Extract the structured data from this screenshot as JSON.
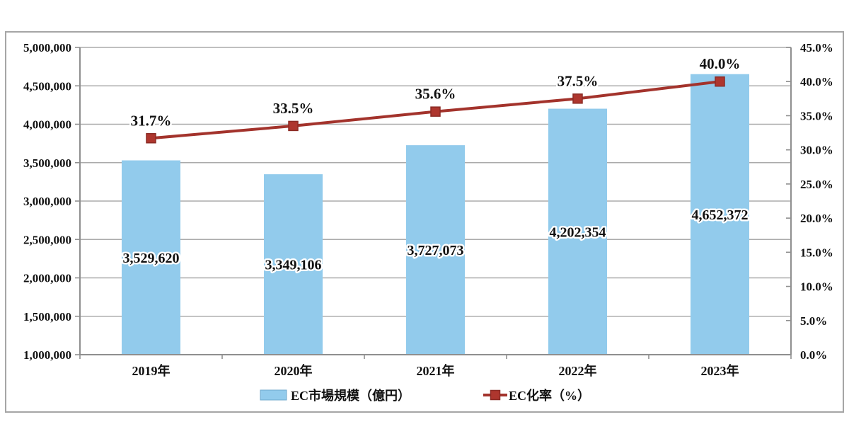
{
  "chart_data": {
    "type": "bar",
    "subtype": "bar-line-combo",
    "title": "",
    "categories": [
      "2019年",
      "2020年",
      "2021年",
      "2022年",
      "2023年"
    ],
    "series": [
      {
        "name": "EC市場規模（億円）",
        "type": "bar",
        "axis": "left",
        "values": [
          3529620,
          3349106,
          3727073,
          4202354,
          4652372
        ],
        "labels": [
          "3,529,620",
          "3,349,106",
          "3,727,073",
          "4,202,354",
          "4,652,372"
        ],
        "color": "#92CBEC",
        "swatch_border": "#6FA8CC"
      },
      {
        "name": "EC化率（%）",
        "type": "line",
        "axis": "right",
        "values": [
          31.7,
          33.5,
          35.6,
          37.5,
          40.0
        ],
        "labels": [
          "31.7%",
          "33.5%",
          "35.6%",
          "37.5%",
          "40.0%"
        ],
        "color": "#A3332C",
        "marker_fill": "#AE362E",
        "marker_border": "#8B2B25"
      }
    ],
    "left_axis": {
      "min": 1000000,
      "max": 5000000,
      "step": 500000,
      "tick_labels": [
        "5,000,000",
        "4,500,000",
        "4,000,000",
        "3,500,000",
        "3,000,000",
        "2,500,000",
        "2,000,000",
        "1,500,000",
        "1,000,000"
      ]
    },
    "right_axis": {
      "min": 0,
      "max": 45,
      "step": 5,
      "tick_labels": [
        "45.0%",
        "40.0%",
        "35.0%",
        "30.0%",
        "25.0%",
        "20.0%",
        "15.0%",
        "10.0%",
        "5.0%",
        "0.0%"
      ]
    },
    "grid": true,
    "legend_position": "bottom"
  },
  "colors": {
    "gridline": "#ABABAB",
    "axis_line": "#8F8F8F",
    "outer_border": "#A6A6A6",
    "background": "#FFFFFF",
    "text": "#111111"
  }
}
